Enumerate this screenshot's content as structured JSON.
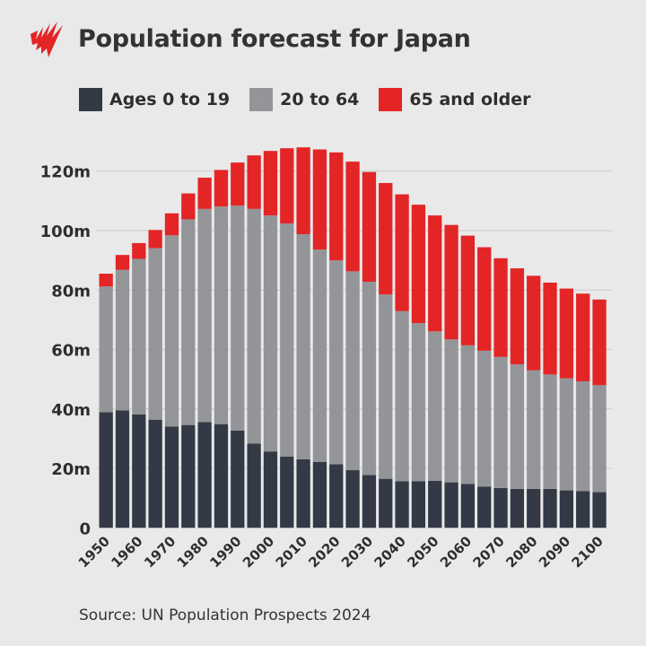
{
  "header": {
    "title": "Population forecast for Japan",
    "logo": "sbs-logo"
  },
  "source": "Source: UN Population Prospects 2024",
  "colors": {
    "young": "#333a45",
    "working": "#939598",
    "old": "#e32526",
    "grid": "#cfcfcf"
  },
  "chart_data": {
    "type": "bar",
    "stacked": true,
    "title": "Population forecast for Japan",
    "xlabel": "",
    "ylabel": "",
    "ylim": [
      0,
      130
    ],
    "yticks": [
      0,
      20,
      40,
      60,
      80,
      100,
      120
    ],
    "ytick_labels": [
      "0",
      "20m",
      "40m",
      "60m",
      "80m",
      "100m",
      "120m"
    ],
    "grid": true,
    "legend": "top",
    "categories": [
      1950,
      1955,
      1960,
      1965,
      1970,
      1975,
      1980,
      1985,
      1990,
      1995,
      2000,
      2005,
      2010,
      2015,
      2020,
      2025,
      2030,
      2035,
      2040,
      2045,
      2050,
      2055,
      2060,
      2065,
      2070,
      2075,
      2080,
      2085,
      2090,
      2095,
      2100
    ],
    "xtick_labels": [
      "1950",
      "1960",
      "1970",
      "1980",
      "1990",
      "2000",
      "2010",
      "2020",
      "2030",
      "2040",
      "2050",
      "2060",
      "2070",
      "2080",
      "2090",
      "2100"
    ],
    "series": [
      {
        "name": "Ages 0 to 19",
        "color": "#333a45",
        "values": [
          38.9,
          39.5,
          38.2,
          36.4,
          34.1,
          34.6,
          35.6,
          34.9,
          32.7,
          28.4,
          25.7,
          24.0,
          23.1,
          22.2,
          21.4,
          19.4,
          17.8,
          16.5,
          15.7,
          15.7,
          15.8,
          15.3,
          14.8,
          13.9,
          13.4,
          13.1,
          13.1,
          13.1,
          12.6,
          12.4,
          12.0
        ]
      },
      {
        "name": "20 to 64",
        "color": "#939598",
        "values": [
          42.3,
          47.3,
          52.3,
          57.7,
          64.3,
          69.2,
          71.7,
          73.2,
          75.7,
          78.9,
          79.4,
          78.4,
          75.7,
          71.4,
          68.6,
          66.9,
          65.0,
          62.0,
          57.2,
          53.2,
          50.3,
          48.1,
          46.6,
          45.7,
          44.1,
          41.9,
          39.9,
          38.5,
          37.7,
          36.9,
          36.0
        ]
      },
      {
        "name": "65 and older",
        "color": "#e32526",
        "values": [
          4.3,
          5.0,
          5.3,
          6.1,
          7.4,
          8.7,
          10.5,
          12.3,
          14.5,
          18.0,
          21.7,
          25.3,
          29.2,
          33.7,
          36.3,
          36.9,
          36.9,
          37.5,
          39.3,
          39.8,
          39.0,
          38.5,
          36.9,
          34.8,
          33.2,
          32.3,
          31.8,
          30.9,
          30.2,
          29.5,
          28.8
        ]
      }
    ]
  }
}
